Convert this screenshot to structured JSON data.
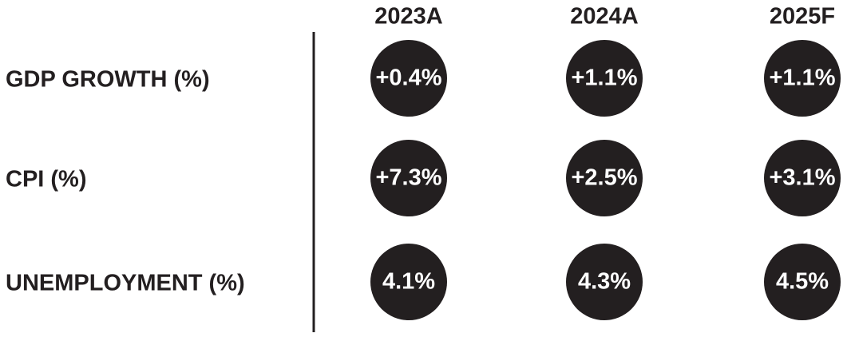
{
  "table": {
    "header": [
      "2023A",
      "2024A",
      "2025F"
    ],
    "rows": [
      {
        "label": "GDP GROWTH (%)",
        "cells": [
          "+0.4%",
          "+1.1%",
          "+1.1%"
        ]
      },
      {
        "label": "CPI (%)",
        "cells": [
          "+7.3%",
          "+2.5%",
          "+3.1%"
        ]
      },
      {
        "label": "UNEMPLOYMENT (%)",
        "cells": [
          "4.1%",
          "4.3%",
          "4.5%"
        ]
      }
    ]
  }
}
